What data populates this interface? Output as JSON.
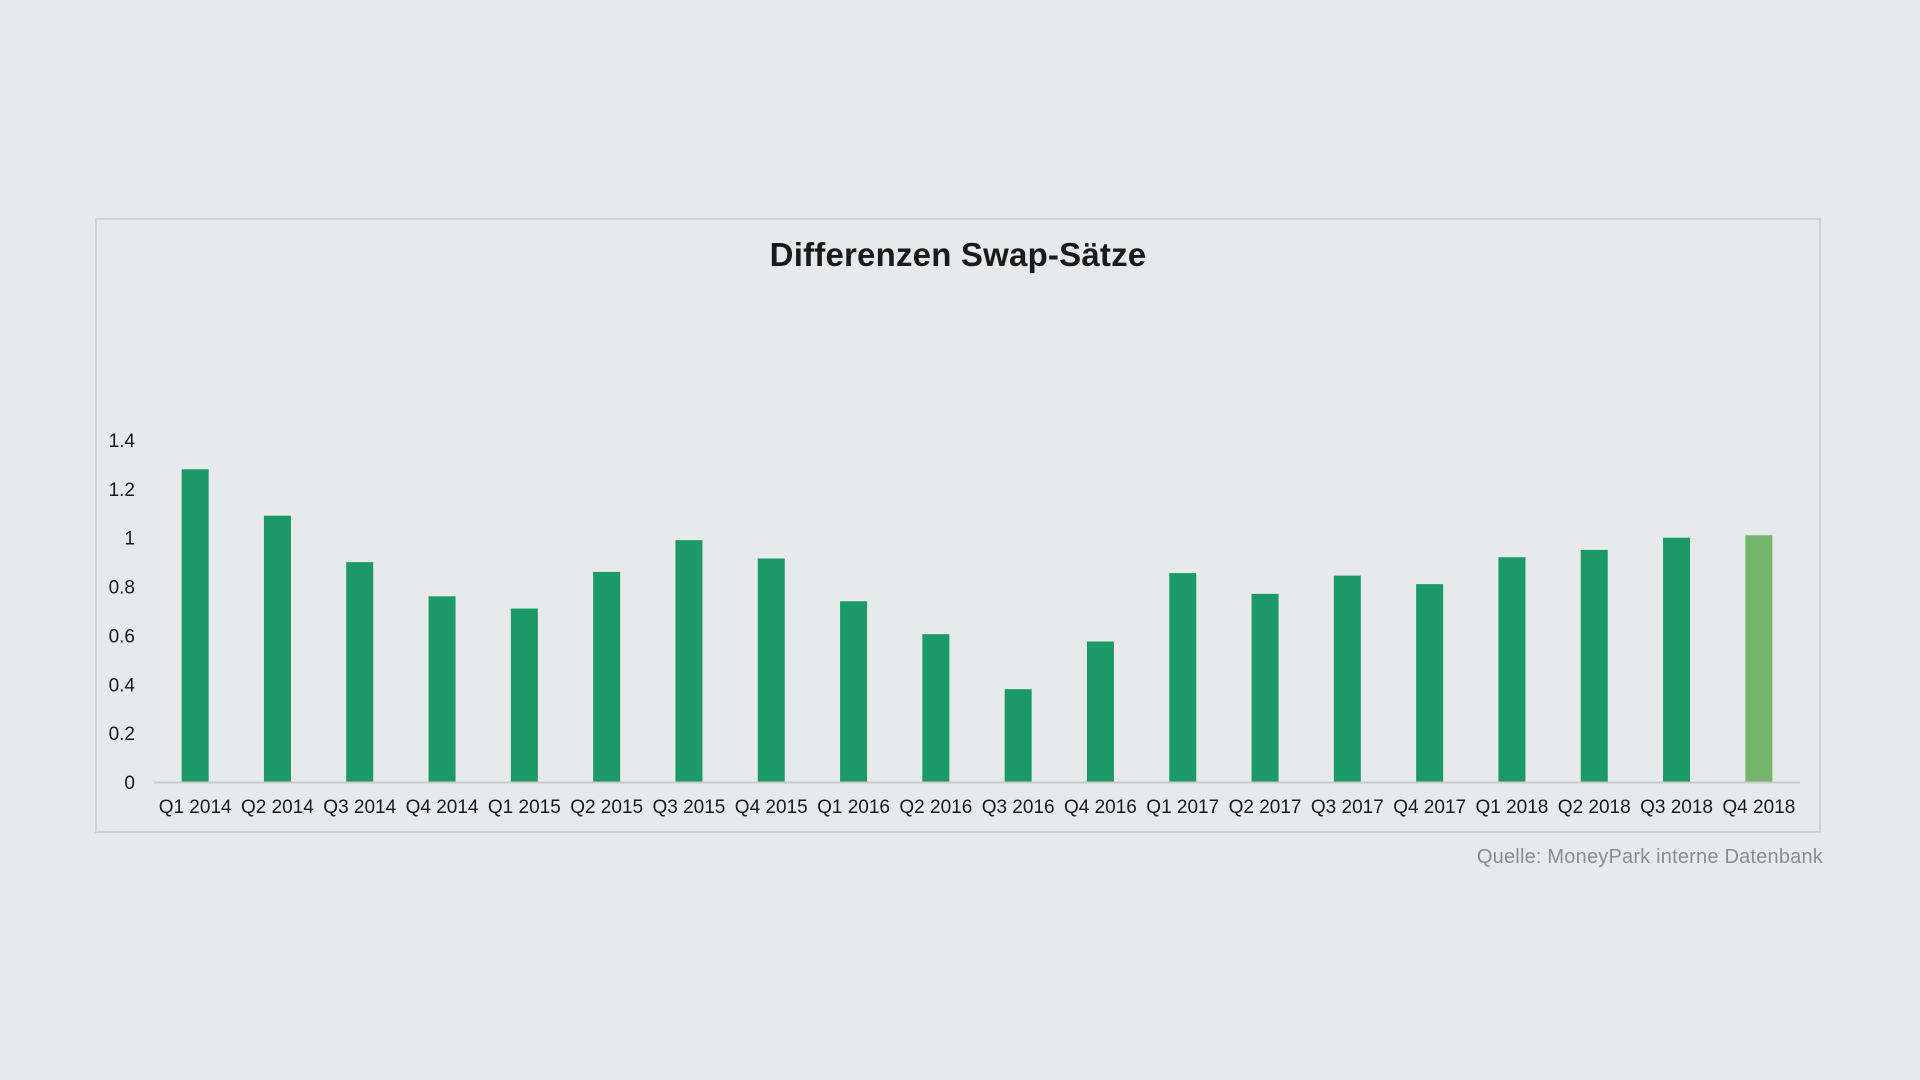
{
  "chart_data": {
    "type": "bar",
    "title": "Differenzen Swap-Sätze",
    "xlabel": "",
    "ylabel": "",
    "ylim": [
      0,
      1.4
    ],
    "yticks": [
      "0",
      "0.2",
      "0.4",
      "0.6",
      "0.8",
      "1",
      "1.2",
      "1.4"
    ],
    "grid": false,
    "categories": [
      "Q1 2014",
      "Q2 2014",
      "Q3 2014",
      "Q4 2014",
      "Q1 2015",
      "Q2 2015",
      "Q3 2015",
      "Q4 2015",
      "Q1 2016",
      "Q2 2016",
      "Q3 2016",
      "Q4 2016",
      "Q1 2017",
      "Q2 2017",
      "Q3 2017",
      "Q4 2017",
      "Q1 2018",
      "Q2 2018",
      "Q3 2018",
      "Q4 2018"
    ],
    "values": [
      1.28,
      1.09,
      0.9,
      0.76,
      0.71,
      0.86,
      0.99,
      0.915,
      0.74,
      0.605,
      0.38,
      0.575,
      0.855,
      0.77,
      0.845,
      0.81,
      0.92,
      0.95,
      1.0,
      1.01
    ],
    "colors": {
      "bar": "#1b9966",
      "highlight": "#75b56b",
      "axis": "#c8cacc"
    },
    "highlight_index": 19
  },
  "source": "Quelle: MoneyPark interne Datenbank"
}
